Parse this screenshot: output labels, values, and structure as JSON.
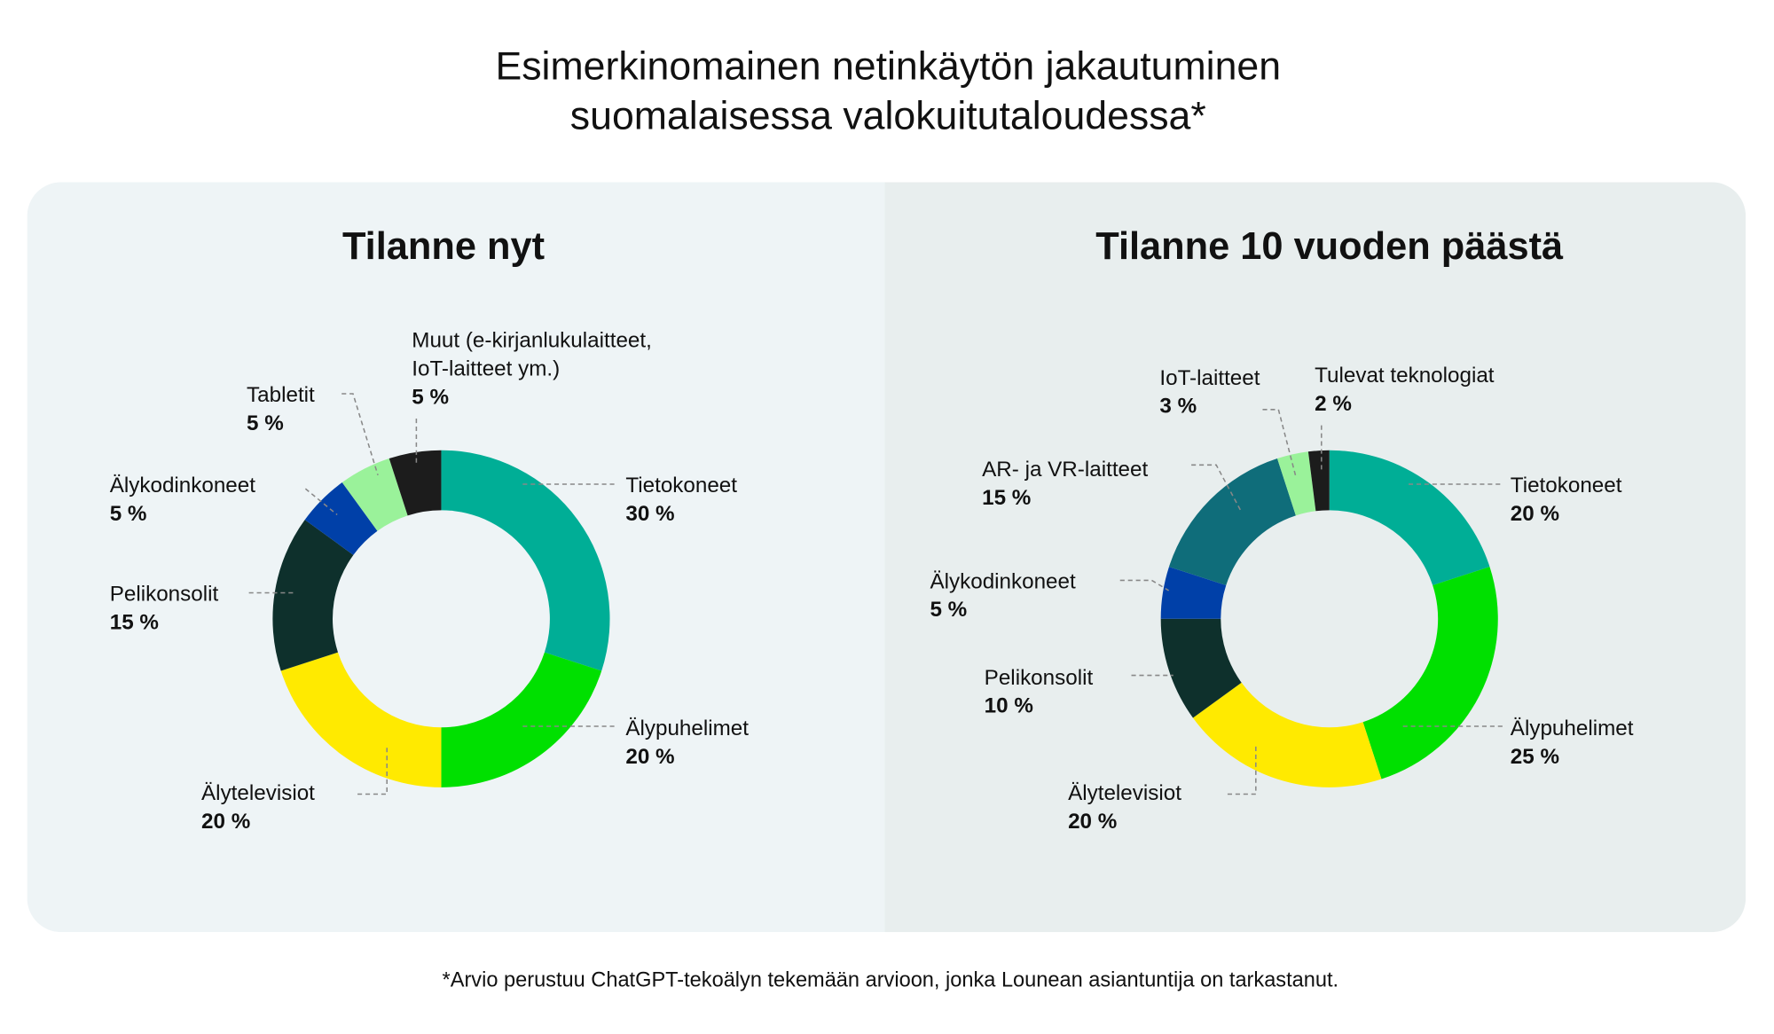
{
  "title_line1": "Esimerkinomainen netinkäytön jakautuminen",
  "title_line2": "suomalaisessa valokuitutaloudessa*",
  "footnote": "*Arvio perustuu ChatGPT-tekoälyn tekemään arvioon, jonka Lounean asiantuntija on tarkastanut.",
  "chart_data": [
    {
      "type": "pie",
      "title": "Tilanne nyt",
      "unit": "%",
      "slices": [
        {
          "label": "Tietokoneet",
          "value": 30,
          "pct_label": "30 %",
          "color": "#00ae96"
        },
        {
          "label": "Älypuhelimet",
          "value": 20,
          "pct_label": "20 %",
          "color": "#00e000"
        },
        {
          "label": "Älytelevisiot",
          "value": 20,
          "pct_label": "20 %",
          "color": "#ffea00"
        },
        {
          "label": "Pelikonsolit",
          "value": 15,
          "pct_label": "15 %",
          "color": "#0e302c"
        },
        {
          "label": "Älykodinkoneet",
          "value": 5,
          "pct_label": "5 %",
          "color": "#0040a8"
        },
        {
          "label": "Tabletit",
          "value": 5,
          "pct_label": "5 %",
          "color": "#9af29a"
        },
        {
          "label": "Muut (e-kirjanlukulaitteet,",
          "label2": "IoT-laitteet ym.)",
          "value": 5,
          "pct_label": "5 %",
          "color": "#1c1c1c"
        }
      ]
    },
    {
      "type": "pie",
      "title": "Tilanne 10 vuoden päästä",
      "unit": "%",
      "slices": [
        {
          "label": "Tietokoneet",
          "value": 20,
          "pct_label": "20 %",
          "color": "#00ae96"
        },
        {
          "label": "Älypuhelimet",
          "value": 25,
          "pct_label": "25 %",
          "color": "#00e000"
        },
        {
          "label": "Älytelevisiot",
          "value": 20,
          "pct_label": "20 %",
          "color": "#ffea00"
        },
        {
          "label": "Pelikonsolit",
          "value": 10,
          "pct_label": "10 %",
          "color": "#0e302c"
        },
        {
          "label": "Älykodinkoneet",
          "value": 5,
          "pct_label": "5 %",
          "color": "#0040a8"
        },
        {
          "label": "AR- ja VR-laitteet",
          "value": 15,
          "pct_label": "15 %",
          "color": "#0f6d7a"
        },
        {
          "label": "IoT-laitteet",
          "value": 3,
          "pct_label": "3 %",
          "color": "#9af29a"
        },
        {
          "label": "Tulevat teknologiat",
          "value": 2,
          "pct_label": "2 %",
          "color": "#1c1c1c"
        }
      ]
    }
  ]
}
